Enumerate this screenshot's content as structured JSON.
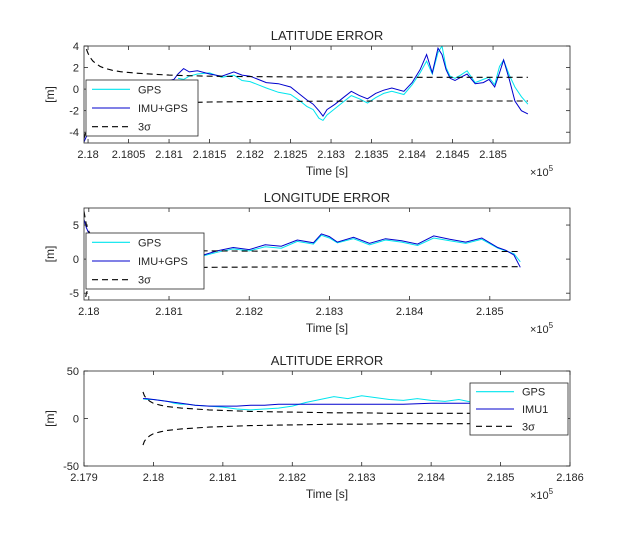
{
  "chart_data": [
    {
      "type": "line",
      "title": "LATITUDE ERROR",
      "xlabel": "Time [s]",
      "ylabel": "[m]",
      "x_exponent_label": "×10",
      "x_exponent": "5",
      "xlim": [
        2.17995,
        2.18595
      ],
      "ylim": [
        -5,
        4
      ],
      "xticks": [
        2.18,
        2.1805,
        2.181,
        2.1815,
        2.182,
        2.1825,
        2.183,
        2.1835,
        2.184,
        2.1845,
        2.185
      ],
      "xticklabels": [
        "2.18",
        "2.1805",
        "2.181",
        "2.1815",
        "2.182",
        "2.1825",
        "2.183",
        "2.1835",
        "2.184",
        "2.1845",
        "2.185"
      ],
      "yticks": [
        -4,
        -2,
        0,
        2,
        4
      ],
      "yticklabels": [
        "-4",
        "-2",
        "0",
        "2",
        "4"
      ],
      "legend_position": "left",
      "series": [
        {
          "name": "GPS",
          "color": "#00e5ee",
          "style": "solid",
          "x": [
            2.18111,
            2.18118,
            2.18125,
            2.18135,
            2.1815,
            2.18165,
            2.1818,
            2.1819,
            2.182,
            2.1821,
            2.1822,
            2.18235,
            2.1825,
            2.1826,
            2.1827,
            2.18278,
            2.18285,
            2.1829,
            2.18295,
            2.18305,
            2.18315,
            2.18325,
            2.18335,
            2.18345,
            2.18355,
            2.18365,
            2.18375,
            2.1839,
            2.184,
            2.1841,
            2.18418,
            2.18425,
            2.18432,
            2.18437,
            2.18442,
            2.18447,
            2.18453,
            2.1846,
            2.18468,
            2.18478,
            2.18488,
            2.18495,
            2.18502,
            2.18508,
            2.18513,
            2.1852,
            2.18527,
            2.18535,
            2.18543
          ],
          "y": [
            1.0,
            0.9,
            1.2,
            1.4,
            1.5,
            1.1,
            1.3,
            0.8,
            0.7,
            0.4,
            0.1,
            -0.3,
            -0.5,
            -1.0,
            -1.6,
            -1.9,
            -2.7,
            -2.9,
            -2.4,
            -1.8,
            -1.2,
            -0.6,
            -0.9,
            -1.3,
            -0.8,
            -0.4,
            -0.2,
            -0.5,
            0.4,
            1.5,
            2.6,
            1.4,
            3.4,
            4.0,
            2.0,
            1.2,
            1.0,
            1.3,
            1.7,
            0.6,
            0.9,
            1.1,
            0.4,
            2.1,
            2.7,
            1.3,
            0.2,
            -0.7,
            -1.4
          ]
        },
        {
          "name": "IMU+GPS",
          "color": "#0000cd",
          "style": "solid",
          "x": [
            2.17995,
            2.17998,
            2.18001,
            2.18005,
            2.1801,
            2.18015,
            2.18022,
            2.1803,
            2.1804,
            2.1805,
            2.1806,
            2.1807,
            2.1808,
            2.1809,
            2.181,
            2.18106,
            2.18111,
            2.18118,
            2.18125,
            2.18135,
            2.1815,
            2.18165,
            2.1818,
            2.1819,
            2.182,
            2.1821,
            2.1822,
            2.18235,
            2.1825,
            2.1826,
            2.1827,
            2.18278,
            2.18285,
            2.1829,
            2.18295,
            2.18305,
            2.18315,
            2.18325,
            2.18335,
            2.18345,
            2.18355,
            2.18365,
            2.18375,
            2.1839,
            2.184,
            2.1841,
            2.18418,
            2.18425,
            2.18432,
            2.18437,
            2.18442,
            2.18447,
            2.18453,
            2.1846,
            2.18468,
            2.18478,
            2.18488,
            2.18495,
            2.18502,
            2.18508,
            2.18513,
            2.1852,
            2.18527,
            2.18535,
            2.18543
          ],
          "y": [
            -4.9,
            -4.4,
            -3.8,
            -3.3,
            -2.9,
            -2.3,
            -1.8,
            -1.2,
            -0.7,
            -0.3,
            0.1,
            0.3,
            0.5,
            0.7,
            0.8,
            0.9,
            1.4,
            1.9,
            1.6,
            1.7,
            1.4,
            1.2,
            1.6,
            1.3,
            1.2,
            0.9,
            0.6,
            0.5,
            0.2,
            -0.4,
            -1.0,
            -1.4,
            -2.0,
            -2.5,
            -1.9,
            -1.4,
            -0.8,
            -0.2,
            -0.6,
            -0.9,
            -0.4,
            -0.1,
            0.1,
            -0.2,
            0.6,
            1.8,
            3.2,
            1.5,
            3.8,
            3.2,
            1.8,
            1.0,
            0.8,
            1.1,
            1.4,
            0.5,
            0.6,
            0.9,
            0.2,
            1.5,
            2.7,
            0.9,
            -1.1,
            -2.0,
            -2.3
          ]
        },
        {
          "name": "3σ",
          "color": "#000000",
          "style": "dashed",
          "x": [
            2.17995,
            2.17998,
            2.18,
            2.18003,
            2.18006,
            2.1801,
            2.18015,
            2.1802,
            2.1803,
            2.1804,
            2.1806,
            2.1808,
            2.181,
            2.1812,
            2.1815,
            2.182,
            2.1825,
            2.183,
            2.1835,
            2.184,
            2.1845,
            2.185,
            2.18543
          ],
          "upper": [
            4.6,
            3.7,
            3.3,
            2.9,
            2.6,
            2.35,
            2.1,
            1.95,
            1.75,
            1.62,
            1.48,
            1.38,
            1.3,
            1.25,
            1.2,
            1.16,
            1.13,
            1.12,
            1.11,
            1.1,
            1.1,
            1.1,
            1.1
          ],
          "lower": [
            -4.6,
            -3.7,
            -3.3,
            -2.9,
            -2.6,
            -2.35,
            -2.1,
            -1.95,
            -1.75,
            -1.62,
            -1.48,
            -1.38,
            -1.3,
            -1.25,
            -1.2,
            -1.16,
            -1.13,
            -1.12,
            -1.11,
            -1.1,
            -1.1,
            -1.1,
            -1.1
          ]
        }
      ]
    },
    {
      "type": "line",
      "title": "LONGITUDE ERROR",
      "xlabel": "Time [s]",
      "ylabel": "[m]",
      "x_exponent_label": "×10",
      "x_exponent": "5",
      "xlim": [
        2.17994,
        2.186
      ],
      "ylim": [
        -6,
        7.5
      ],
      "xticks": [
        2.18,
        2.181,
        2.182,
        2.183,
        2.184,
        2.185
      ],
      "xticklabels": [
        "2.18",
        "2.181",
        "2.182",
        "2.183",
        "2.184",
        "2.185"
      ],
      "yticks": [
        -5,
        0,
        5
      ],
      "yticklabels": [
        "-5",
        "0",
        "5"
      ],
      "legend_position": "left",
      "series": [
        {
          "name": "GPS",
          "color": "#00e5ee",
          "style": "solid",
          "x": [
            2.1814,
            2.1816,
            2.1818,
            2.182,
            2.1822,
            2.1824,
            2.1826,
            2.1828,
            2.1829,
            2.183,
            2.1831,
            2.1833,
            2.1835,
            2.1837,
            2.1839,
            2.1841,
            2.1843,
            2.1845,
            2.1847,
            2.1849,
            2.1851,
            2.1852,
            2.1853,
            2.18538
          ],
          "y": [
            0.4,
            1.0,
            1.5,
            1.2,
            1.8,
            1.6,
            2.6,
            2.2,
            3.5,
            3.1,
            2.4,
            3.0,
            2.1,
            2.8,
            2.5,
            2.0,
            3.1,
            2.7,
            2.3,
            2.9,
            1.6,
            1.2,
            0.8,
            -0.4
          ]
        },
        {
          "name": "IMU+GPS",
          "color": "#0000cd",
          "style": "solid",
          "x": [
            2.17994,
            2.17997,
            2.18,
            2.18005,
            2.1801,
            2.1802,
            2.1803,
            2.1804,
            2.1806,
            2.1808,
            2.181,
            2.1812,
            2.1814,
            2.1816,
            2.1818,
            2.182,
            2.1822,
            2.1824,
            2.1826,
            2.1828,
            2.1829,
            2.183,
            2.1831,
            2.1833,
            2.1835,
            2.1837,
            2.1839,
            2.1841,
            2.1843,
            2.1845,
            2.1847,
            2.1849,
            2.1851,
            2.1852,
            2.1853,
            2.18538
          ],
          "y": [
            5.8,
            4.6,
            3.8,
            2.8,
            2.0,
            1.2,
            0.6,
            0.2,
            0.0,
            -0.1,
            0.1,
            0.2,
            0.5,
            1.2,
            1.7,
            1.4,
            2.1,
            1.9,
            2.8,
            2.4,
            3.7,
            3.3,
            2.5,
            3.2,
            2.3,
            3.0,
            2.7,
            2.2,
            3.4,
            2.9,
            2.5,
            3.1,
            1.7,
            1.3,
            0.6,
            -1.2
          ]
        },
        {
          "name": "3σ",
          "color": "#000000",
          "style": "dashed",
          "x": [
            2.17994,
            2.17997,
            2.18,
            2.18003,
            2.18006,
            2.1801,
            2.18015,
            2.1802,
            2.1803,
            2.1804,
            2.1806,
            2.1808,
            2.181,
            2.1812,
            2.1815,
            2.182,
            2.1825,
            2.183,
            2.1835,
            2.184,
            2.1845,
            2.185,
            2.18538
          ],
          "upper": [
            7.0,
            5.0,
            4.1,
            3.4,
            2.9,
            2.5,
            2.2,
            2.0,
            1.75,
            1.6,
            1.45,
            1.35,
            1.3,
            1.25,
            1.2,
            1.17,
            1.15,
            1.13,
            1.12,
            1.12,
            1.12,
            1.12,
            1.12
          ],
          "lower": [
            -7.0,
            -5.0,
            -4.1,
            -3.4,
            -2.9,
            -2.5,
            -2.2,
            -2.0,
            -1.75,
            -1.6,
            -1.45,
            -1.35,
            -1.3,
            -1.25,
            -1.2,
            -1.17,
            -1.15,
            -1.13,
            -1.12,
            -1.12,
            -1.12,
            -1.12,
            -1.12
          ]
        }
      ]
    },
    {
      "type": "line",
      "title": "ALTITUDE ERROR",
      "xlabel": "Time [s]",
      "ylabel": "[m]",
      "x_exponent_label": "×10",
      "x_exponent": "5",
      "xlim": [
        2.179,
        2.186
      ],
      "ylim": [
        -50,
        50
      ],
      "xticks": [
        2.179,
        2.18,
        2.181,
        2.182,
        2.183,
        2.184,
        2.185,
        2.186
      ],
      "xticklabels": [
        "2.179",
        "2.18",
        "2.181",
        "2.182",
        "2.183",
        "2.184",
        "2.185",
        "2.186"
      ],
      "yticks": [
        -50,
        0,
        50
      ],
      "yticklabels": [
        "-50",
        "0",
        "50"
      ],
      "legend_position": "right",
      "series": [
        {
          "name": "GPS",
          "color": "#00e5ee",
          "style": "solid",
          "x": [
            2.17985,
            2.1799,
            2.18,
            2.1801,
            2.1802,
            2.1803,
            2.1804,
            2.1805,
            2.1806,
            2.1808,
            2.181,
            2.1812,
            2.1814,
            2.1816,
            2.1818,
            2.182,
            2.1822,
            2.1824,
            2.1826,
            2.1828,
            2.183,
            2.1832,
            2.1834,
            2.1836,
            2.1838,
            2.184,
            2.1842,
            2.1844,
            2.1846,
            2.1848,
            2.185,
            2.1852,
            2.18538
          ],
          "y": [
            21,
            20,
            20,
            19,
            18,
            16,
            15,
            15,
            14,
            13,
            12,
            10,
            9,
            10,
            11,
            13,
            17,
            20,
            23,
            21,
            24,
            22,
            20,
            19,
            21,
            19,
            18,
            20,
            17,
            18,
            20,
            24,
            26
          ]
        },
        {
          "name": "IMU1",
          "color": "#0000cd",
          "style": "solid",
          "x": [
            2.17985,
            2.1799,
            2.18,
            2.1802,
            2.1804,
            2.1806,
            2.1808,
            2.181,
            2.1812,
            2.1814,
            2.1816,
            2.1818,
            2.182,
            2.1824,
            2.1828,
            2.1832,
            2.1836,
            2.184,
            2.1844,
            2.1848,
            2.1852,
            2.18538
          ],
          "y": [
            21,
            21,
            20,
            18,
            16,
            14,
            13,
            13,
            13,
            14,
            14,
            15,
            15,
            15,
            15,
            15,
            15,
            16,
            16,
            16,
            17,
            19
          ]
        },
        {
          "name": "3σ",
          "color": "#000000",
          "style": "dashed",
          "x": [
            2.17985,
            2.17987,
            2.1799,
            2.17995,
            2.18,
            2.1801,
            2.1802,
            2.1804,
            2.1806,
            2.1808,
            2.181,
            2.1814,
            2.1818,
            2.1822,
            2.1826,
            2.183,
            2.1834,
            2.1838,
            2.1842,
            2.1846,
            2.185,
            2.18538
          ],
          "upper": [
            28,
            24,
            21,
            18,
            16,
            14,
            12.5,
            11,
            10,
            9,
            8.5,
            7.5,
            7,
            6.5,
            6,
            6,
            5.5,
            5.5,
            5.5,
            5.5,
            5.5,
            5.5
          ],
          "lower": [
            -28,
            -24,
            -21,
            -18,
            -16,
            -14,
            -12.5,
            -11,
            -10,
            -9,
            -8.5,
            -7.5,
            -7,
            -6.5,
            -6,
            -6,
            -5.5,
            -5.5,
            -5.5,
            -5.5,
            -5.5,
            -5.5
          ]
        }
      ]
    }
  ]
}
